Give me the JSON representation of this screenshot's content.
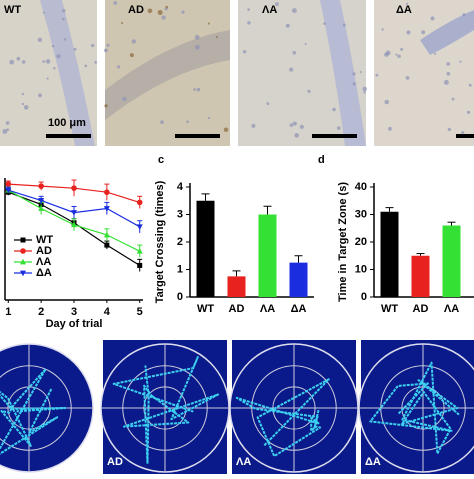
{
  "micrographs": {
    "labels": [
      "WT",
      "AD",
      "ΛA",
      "ΔA"
    ],
    "scale_bar": "100 μm"
  },
  "chart_data": [
    {
      "type": "line",
      "xlabel": "Day of trial",
      "x": [
        1,
        2,
        3,
        4,
        5
      ],
      "xlim": [
        0.9,
        5.1
      ],
      "xticks": [
        1,
        2,
        3,
        4,
        5
      ],
      "ylim": [
        0,
        60
      ],
      "series": [
        {
          "name": "WT",
          "color": "#000000",
          "marker": "square",
          "values": [
            53,
            47,
            38,
            27,
            17
          ],
          "errors": [
            1.5,
            2,
            2,
            2,
            3
          ]
        },
        {
          "name": "AD",
          "color": "#e8231f",
          "marker": "circle",
          "values": [
            57,
            56,
            55,
            53,
            48
          ],
          "errors": [
            1.5,
            2,
            4,
            4,
            3
          ]
        },
        {
          "name": "ΛA",
          "color": "#33e033",
          "marker": "triangle",
          "values": [
            54,
            45,
            37,
            32,
            24
          ],
          "errors": [
            1.5,
            3,
            3,
            3,
            3
          ]
        },
        {
          "name": "ΔA",
          "color": "#1a2ee0",
          "marker": "triangle-down",
          "values": [
            54,
            49,
            43,
            45,
            36
          ],
          "errors": [
            1.5,
            2,
            3,
            3,
            3
          ]
        }
      ]
    },
    {
      "type": "bar",
      "panel_label": "c",
      "ylabel": "Target Crossing (times)",
      "categories": [
        "WT",
        "AD",
        "ΛA",
        "ΔA"
      ],
      "values": [
        3.5,
        0.75,
        3.0,
        1.25
      ],
      "errors": [
        0.25,
        0.2,
        0.3,
        0.25
      ],
      "colors": [
        "#000000",
        "#e8231f",
        "#33e033",
        "#1a2ee0"
      ],
      "ylim": [
        0,
        4
      ],
      "yticks": [
        0,
        1,
        2,
        3,
        4
      ]
    },
    {
      "type": "bar",
      "panel_label": "d",
      "ylabel": "Time in Target Zone (s)",
      "categories": [
        "WT",
        "AD",
        "ΛA"
      ],
      "values": [
        31,
        15,
        26
      ],
      "errors": [
        1.5,
        0.8,
        1.2
      ],
      "colors": [
        "#000000",
        "#e8231f",
        "#33e033"
      ],
      "ylim": [
        0,
        40
      ],
      "yticks": [
        0,
        10,
        20,
        30,
        40
      ]
    }
  ],
  "tracks": {
    "labels": [
      "AD",
      "ΛA",
      "ΔA"
    ]
  }
}
